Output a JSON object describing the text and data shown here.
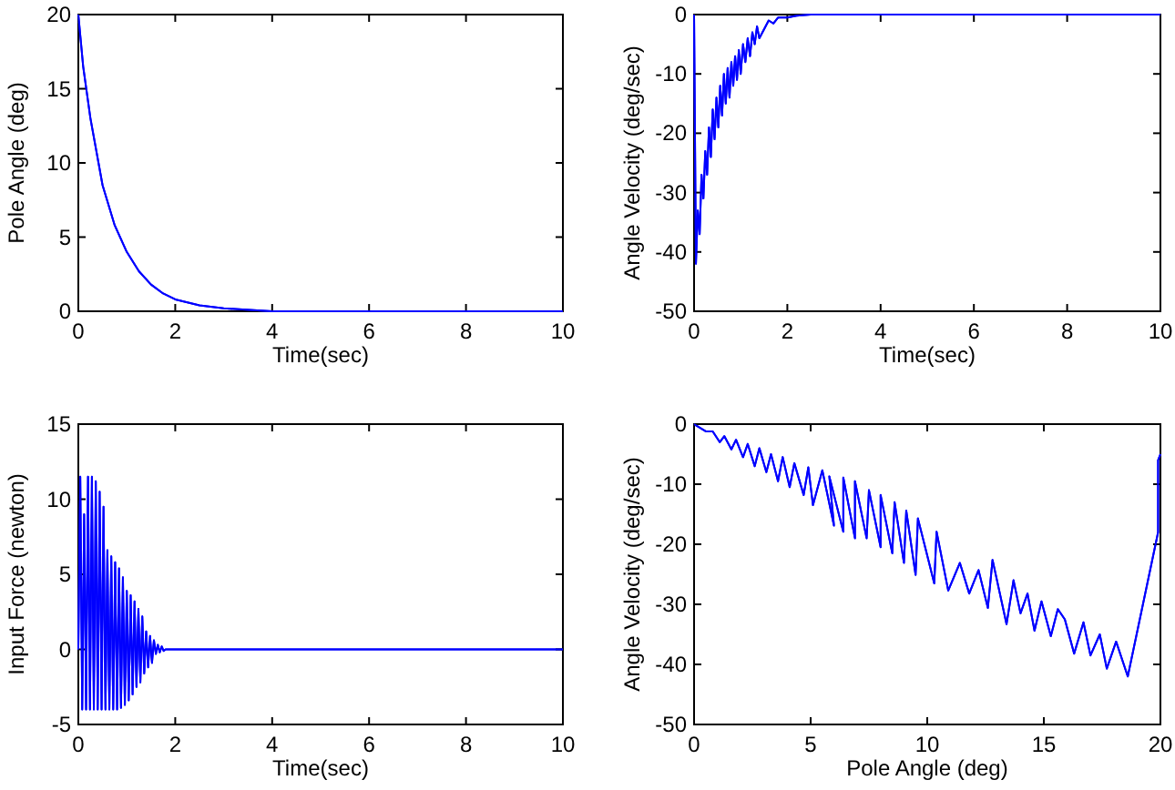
{
  "chart_data": [
    {
      "type": "line",
      "xlabel": "Time(sec)",
      "ylabel": "Pole Angle (deg)",
      "xlim": [
        0,
        10
      ],
      "xticks": [
        0,
        2,
        4,
        6,
        8,
        10
      ],
      "ylim": [
        0,
        20
      ],
      "yticks": [
        0,
        5,
        10,
        15,
        20
      ],
      "grid": false,
      "series": [
        {
          "color": "#0000ff",
          "x": [
            0,
            0.1,
            0.25,
            0.5,
            0.75,
            1,
            1.25,
            1.5,
            1.75,
            2,
            2.5,
            3,
            4,
            5,
            10
          ],
          "values": [
            20,
            16.5,
            13,
            8.5,
            5.8,
            4,
            2.7,
            1.8,
            1.2,
            0.8,
            0.4,
            0.2,
            0,
            0,
            0
          ]
        }
      ]
    },
    {
      "type": "line",
      "xlabel": "Time(sec)",
      "ylabel": "Angle Velocity  (deg/sec)",
      "xlim": [
        0,
        10
      ],
      "xticks": [
        0,
        2,
        4,
        6,
        8,
        10
      ],
      "ylim": [
        -50,
        0
      ],
      "yticks": [
        -50,
        -40,
        -30,
        -20,
        -10,
        0
      ],
      "grid": false,
      "series": [
        {
          "color": "#0000ff",
          "x": [
            0,
            0.04,
            0.08,
            0.12,
            0.16,
            0.2,
            0.24,
            0.28,
            0.32,
            0.36,
            0.4,
            0.44,
            0.48,
            0.52,
            0.56,
            0.6,
            0.64,
            0.68,
            0.72,
            0.76,
            0.8,
            0.84,
            0.88,
            0.92,
            0.96,
            1,
            1.05,
            1.1,
            1.15,
            1.2,
            1.25,
            1.3,
            1.35,
            1.4,
            1.5,
            1.6,
            1.7,
            1.8,
            2,
            2.2,
            2.5,
            3,
            10
          ],
          "values": [
            0,
            -42,
            -33,
            -37,
            -27,
            -31,
            -23,
            -27,
            -19,
            -24,
            -16,
            -21,
            -14,
            -19,
            -12,
            -17,
            -10,
            -15,
            -9,
            -14,
            -8,
            -12,
            -7,
            -11,
            -6,
            -10,
            -5,
            -8,
            -4,
            -7,
            -3,
            -5,
            -2,
            -4,
            -2.5,
            -1,
            -1.5,
            -0.5,
            -0.5,
            -0.2,
            0,
            0,
            0
          ]
        }
      ]
    },
    {
      "type": "line",
      "xlabel": "Time(sec)",
      "ylabel": "Input Force (newton)",
      "xlim": [
        0,
        10
      ],
      "xticks": [
        0,
        2,
        4,
        6,
        8,
        10
      ],
      "ylim": [
        -5,
        15
      ],
      "yticks": [
        -5,
        0,
        5,
        10,
        15
      ],
      "grid": false,
      "series": [
        {
          "color": "#0000ff",
          "x": [
            0,
            0.04,
            0.08,
            0.12,
            0.16,
            0.2,
            0.24,
            0.28,
            0.32,
            0.36,
            0.4,
            0.44,
            0.48,
            0.52,
            0.56,
            0.6,
            0.64,
            0.68,
            0.72,
            0.76,
            0.8,
            0.84,
            0.88,
            0.92,
            0.96,
            1,
            1.04,
            1.08,
            1.12,
            1.16,
            1.2,
            1.24,
            1.28,
            1.32,
            1.36,
            1.4,
            1.44,
            1.48,
            1.52,
            1.56,
            1.6,
            1.64,
            1.68,
            1.72,
            1.76,
            1.8,
            2,
            10
          ],
          "values": [
            0,
            11.5,
            -4,
            9,
            -4,
            11.5,
            -4,
            11.5,
            -4,
            11.2,
            -4,
            10.5,
            -4,
            9.5,
            -4,
            6.6,
            -4,
            6.2,
            -4,
            5.8,
            -4,
            5.4,
            -3.9,
            4.8,
            -3.7,
            3.9,
            -3.4,
            3.6,
            -3,
            3.2,
            -2.5,
            2.7,
            -2.2,
            2.2,
            -1.6,
            1.2,
            -1.2,
            0.9,
            -0.9,
            0.6,
            -0.3,
            0.3,
            -0.2,
            0.2,
            -0.1,
            0,
            0,
            0
          ]
        }
      ]
    },
    {
      "type": "line",
      "xlabel": "Pole Angle (deg)",
      "ylabel": "Angle Velocity (deg/sec)",
      "xlim": [
        0,
        20
      ],
      "xticks": [
        0,
        5,
        10,
        15,
        20
      ],
      "ylim": [
        -50,
        0
      ],
      "yticks": [
        -50,
        -40,
        -30,
        -20,
        -10,
        0
      ],
      "grid": false,
      "series": [
        {
          "color": "#0000ff",
          "x": [
            20,
            19.9,
            19.9,
            18.6,
            18.1,
            17.7,
            17.4,
            17,
            16.7,
            16.3,
            15.9,
            15.6,
            15.3,
            14.9,
            14.6,
            14.3,
            14,
            13.7,
            13.4,
            12.8,
            12.6,
            12.2,
            11.8,
            11.4,
            10.9,
            10.4,
            10.3,
            9.6,
            9.5,
            9.1,
            9,
            8.6,
            8.5,
            8,
            8,
            7.5,
            7.4,
            6.9,
            6.9,
            6.4,
            6.4,
            5.8,
            6,
            5.5,
            5.1,
            4.9,
            4.7,
            4.3,
            4.1,
            3.8,
            3.6,
            3.3,
            3.1,
            2.8,
            2.6,
            2.3,
            2.1,
            1.8,
            1.6,
            1.3,
            1.1,
            0.8,
            0.5,
            0
          ],
          "values": [
            -5,
            -6,
            -18,
            -42,
            -36.2,
            -40.7,
            -35,
            -38.5,
            -33,
            -38.2,
            -32.5,
            -30.8,
            -35.3,
            -29.5,
            -34.4,
            -28.2,
            -31.5,
            -26,
            -33.3,
            -22.6,
            -30.6,
            -24.3,
            -28.2,
            -23.1,
            -27.7,
            -17.9,
            -26.5,
            -15.7,
            -25.1,
            -14.4,
            -23.1,
            -13,
            -21.5,
            -11.8,
            -20.5,
            -11,
            -19,
            -9.5,
            -19,
            -8.9,
            -17.9,
            -8.7,
            -16.9,
            -7.7,
            -13.5,
            -7.2,
            -11.8,
            -6.5,
            -10.5,
            -5.5,
            -9.5,
            -5,
            -8,
            -4,
            -7,
            -3.3,
            -5.5,
            -2.6,
            -4.2,
            -2,
            -3,
            -1.2,
            -1.2,
            0
          ]
        }
      ]
    }
  ]
}
